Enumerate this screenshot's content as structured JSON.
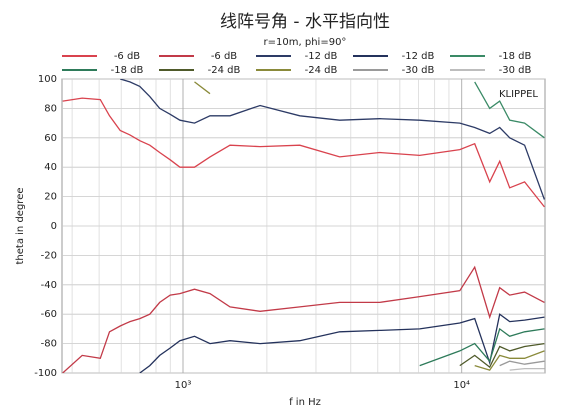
{
  "chart_data": {
    "type": "line",
    "title": "线阵号角 - 水平指向性",
    "subtitle": "r=10m, phi=90°",
    "annotation": "KLIPPEL",
    "x_label": "f in Hz",
    "y_label": "theta in degree",
    "log_x": true,
    "grid": true,
    "xlim": [
      368,
      19900
    ],
    "ylim": [
      -100,
      100
    ],
    "xticks": [
      {
        "value": 1000,
        "label": "10³"
      },
      {
        "value": 10000,
        "label": "10⁴"
      }
    ],
    "xminor_ticks": [
      400,
      500,
      600,
      700,
      800,
      900,
      2000,
      3000,
      4000,
      5000,
      6000,
      7000,
      8000,
      9000
    ],
    "yticks": [
      100,
      80,
      60,
      40,
      20,
      0,
      -20,
      -40,
      -60,
      -80,
      -100
    ],
    "x": [
      370,
      435,
      505,
      545,
      595,
      645,
      700,
      760,
      825,
      900,
      975,
      1100,
      1250,
      1475,
      1890,
      2625,
      3650,
      5080,
      7070,
      9840,
      11130,
      12600,
      13690,
      14860,
      16820,
      19800
    ],
    "series": [
      {
        "name": "-6 dB",
        "color": "#d9434e",
        "values": [
          85,
          87,
          86,
          75,
          65,
          62,
          58,
          55,
          50,
          45,
          40,
          40,
          47,
          55,
          54,
          55,
          47,
          50,
          48,
          52,
          56,
          30,
          44,
          26,
          30,
          13
        ]
      },
      {
        "name": "-6 dB",
        "color": "#c23a48",
        "values": [
          -100,
          -88,
          -90,
          -72,
          -68,
          -65,
          -63,
          -60,
          -52,
          -47,
          -46,
          -43,
          -46,
          -55,
          -58,
          -55,
          -52,
          -52,
          -48,
          -44,
          -28,
          -62,
          -42,
          -47,
          -45,
          -52
        ]
      },
      {
        "name": "-12 dB",
        "color": "#2d3b66",
        "values": [
          null,
          null,
          null,
          null,
          100,
          98,
          95,
          88,
          80,
          76,
          72,
          70,
          75,
          75,
          82,
          75,
          72,
          73,
          72,
          70,
          67,
          63,
          67,
          60,
          55,
          18
        ]
      },
      {
        "name": "-12 dB",
        "color": "#24325c",
        "values": [
          null,
          null,
          null,
          null,
          null,
          null,
          -100,
          -95,
          -88,
          -83,
          -78,
          -75,
          -80,
          -78,
          -80,
          -78,
          -72,
          -71,
          -70,
          -66,
          -63,
          -93,
          -60,
          -65,
          -64,
          -62
        ]
      },
      {
        "name": "-18 dB",
        "color": "#3a8a66",
        "values": [
          null,
          null,
          null,
          null,
          null,
          null,
          null,
          null,
          null,
          null,
          null,
          null,
          null,
          null,
          null,
          null,
          null,
          null,
          null,
          null,
          98,
          80,
          85,
          72,
          70,
          60
        ]
      },
      {
        "name": "-18 dB",
        "color": "#2e7b5a",
        "values": [
          null,
          null,
          null,
          null,
          null,
          null,
          null,
          null,
          null,
          null,
          null,
          null,
          null,
          null,
          null,
          null,
          null,
          null,
          -95,
          -85,
          -80,
          -92,
          -70,
          -75,
          -72,
          -70
        ]
      },
      {
        "name": "-24 dB",
        "color": "#4f5a2a",
        "values": [
          null,
          null,
          null,
          null,
          null,
          null,
          null,
          null,
          null,
          null,
          null,
          null,
          null,
          null,
          null,
          null,
          null,
          null,
          null,
          -95,
          -88,
          -96,
          -82,
          -85,
          -82,
          -80
        ]
      },
      {
        "name": "-24 dB",
        "color": "#8a8a3a",
        "values": [
          null,
          null,
          null,
          null,
          null,
          null,
          null,
          null,
          null,
          null,
          null,
          98,
          90,
          null,
          null,
          null,
          null,
          null,
          null,
          null,
          -95,
          -98,
          -88,
          -90,
          -90,
          -85
        ]
      },
      {
        "name": "-30 dB",
        "color": "#9a9a9a",
        "values": [
          null,
          null,
          null,
          null,
          null,
          null,
          null,
          null,
          null,
          null,
          null,
          null,
          null,
          null,
          null,
          null,
          null,
          null,
          null,
          null,
          null,
          null,
          -95,
          -92,
          -94,
          -92
        ]
      },
      {
        "name": "-30 dB",
        "color": "#bdbdbd",
        "values": [
          null,
          null,
          null,
          null,
          null,
          null,
          null,
          null,
          null,
          null,
          null,
          null,
          null,
          null,
          null,
          null,
          null,
          null,
          null,
          null,
          null,
          null,
          null,
          -98,
          -97,
          -97
        ]
      }
    ]
  }
}
